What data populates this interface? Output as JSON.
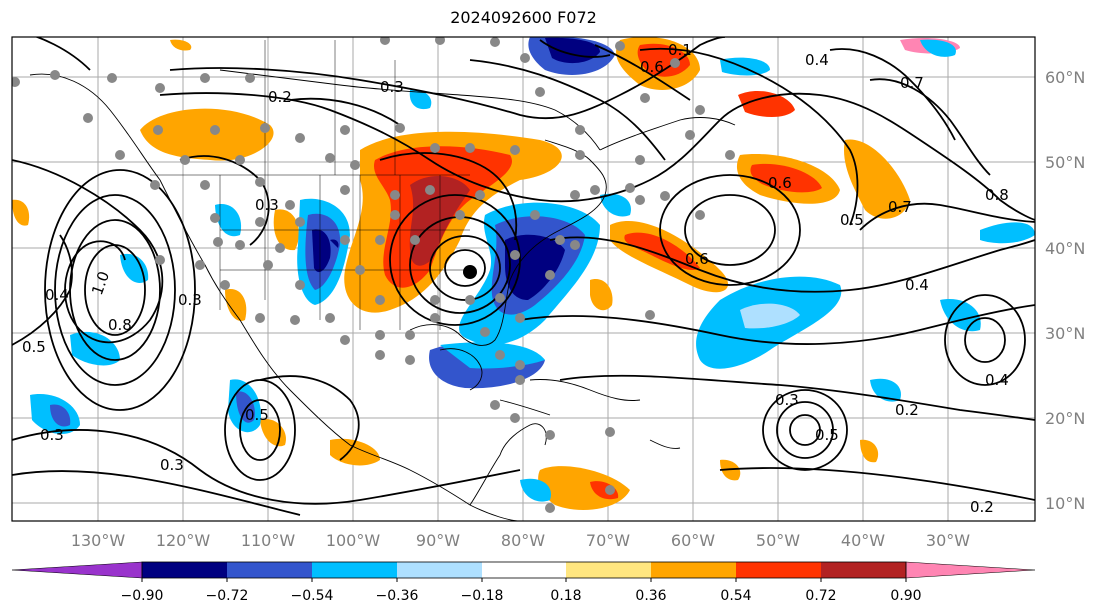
{
  "title": "2024092600 F072",
  "lon_labels": [
    "130°W",
    "120°W",
    "110°W",
    "100°W",
    "90°W",
    "80°W",
    "70°W",
    "60°W",
    "50°W",
    "40°W",
    "30°W"
  ],
  "lat_labels": [
    "60°N",
    "50°N",
    "40°N",
    "30°N",
    "20°N",
    "10°N"
  ],
  "colorbar": {
    "tick_labels": [
      "−0.90",
      "−0.72",
      "−0.54",
      "−0.36",
      "−0.18",
      "0.18",
      "0.36",
      "0.54",
      "0.72",
      "0.90"
    ],
    "colors": [
      "#9933cc",
      "#000080",
      "#3355cc",
      "#00bfff",
      "#aee0ff",
      "#ffffff",
      "#ffe680",
      "#ffa500",
      "#ff3300",
      "#b22222",
      "#ff85b3"
    ]
  },
  "contour_labels": [
    "0.3",
    "0.2",
    "0.5",
    "1.0",
    "0.4",
    "0.8",
    "0.6",
    "0.7",
    "0.8",
    "0.5",
    "0.3",
    "0.6",
    "0.7",
    "0.4",
    "0.4",
    "0.5",
    "0.3",
    "0.3",
    "0.2",
    "0.4",
    "0.5",
    "0.6",
    "0.3",
    "0.2",
    "0.1",
    "0.3"
  ],
  "legend": {
    "fill_meaning": "shaded anomalies",
    "stations": "grey dots"
  }
}
